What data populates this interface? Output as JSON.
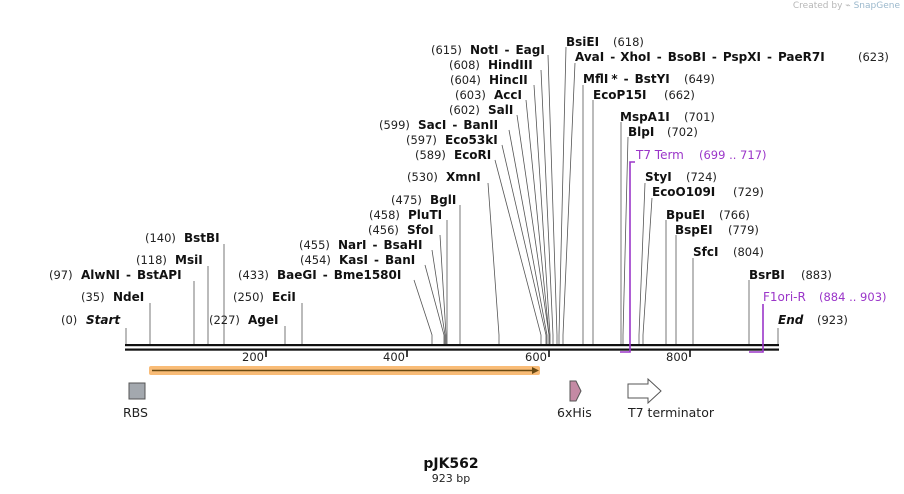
{
  "watermark": {
    "prefix": "Created by",
    "brand": "SnapGene"
  },
  "plasmid": {
    "name": "pJK562",
    "length_label": "923 bp",
    "length": 923
  },
  "axis_ticks": [
    "200",
    "400",
    "600",
    "800"
  ],
  "start_label": {
    "pos": "(0)",
    "name": "Start"
  },
  "end_label": {
    "name": "End",
    "pos": "(923)"
  },
  "sites_left": [
    {
      "pos": "(35)",
      "names": [
        "NdeI"
      ],
      "bp": 35
    },
    {
      "pos": "(97)",
      "names": [
        "AlwNI",
        "BstAPI"
      ],
      "bp": 97
    },
    {
      "pos": "(118)",
      "names": [
        "MsiI"
      ],
      "bp": 118
    },
    {
      "pos": "(140)",
      "names": [
        "BstBI"
      ],
      "bp": 140
    },
    {
      "pos": "(227)",
      "names": [
        "AgeI"
      ],
      "bp": 227
    },
    {
      "pos": "(250)",
      "names": [
        "EciI"
      ],
      "bp": 250
    },
    {
      "pos": "(433)",
      "names": [
        "BaeGI",
        "Bme1580I"
      ],
      "bp": 433
    },
    {
      "pos": "(454)",
      "names": [
        "KasI",
        "BanI"
      ],
      "bp": 454
    },
    {
      "pos": "(455)",
      "names": [
        "NarI",
        "BsaHI"
      ],
      "bp": 455
    },
    {
      "pos": "(456)",
      "names": [
        "SfoI"
      ],
      "bp": 456
    },
    {
      "pos": "(458)",
      "names": [
        "PluTI"
      ],
      "bp": 458
    },
    {
      "pos": "(475)",
      "names": [
        "BglI"
      ],
      "bp": 475
    },
    {
      "pos": "(530)",
      "names": [
        "XmnI"
      ],
      "bp": 530
    },
    {
      "pos": "(589)",
      "names": [
        "EcoRI"
      ],
      "bp": 589
    },
    {
      "pos": "(597)",
      "names": [
        "Eco53kI"
      ],
      "bp": 597
    },
    {
      "pos": "(599)",
      "names": [
        "SacI",
        "BanII"
      ],
      "bp": 599
    },
    {
      "pos": "(602)",
      "names": [
        "SalI"
      ],
      "bp": 602
    },
    {
      "pos": "(603)",
      "names": [
        "AccI"
      ],
      "bp": 603
    },
    {
      "pos": "(604)",
      "names": [
        "HincII"
      ],
      "bp": 604
    },
    {
      "pos": "(608)",
      "names": [
        "HindIII"
      ],
      "bp": 608
    },
    {
      "pos": "(615)",
      "names": [
        "NotI",
        "EagI"
      ],
      "bp": 615
    }
  ],
  "sites_right": [
    {
      "names": [
        "BsiEI"
      ],
      "pos": "(618)",
      "bp": 618
    },
    {
      "names": [
        "AvaI",
        "XhoI",
        "BsoBI",
        "PspXI",
        "PaeR7I"
      ],
      "pos": "(623)",
      "bp": 623
    },
    {
      "names": [
        "MflI",
        "BstYI"
      ],
      "star": "*",
      "pos": "(649)",
      "bp": 649
    },
    {
      "names": [
        "EcoP15I"
      ],
      "pos": "(662)",
      "bp": 662
    },
    {
      "names": [
        "MspA1I"
      ],
      "pos": "(701)",
      "bp": 701
    },
    {
      "names": [
        "BlpI"
      ],
      "pos": "(702)",
      "bp": 702
    },
    {
      "names": [
        "StyI"
      ],
      "pos": "(724)",
      "bp": 724
    },
    {
      "names": [
        "EcoO109I"
      ],
      "pos": "(729)",
      "bp": 729
    },
    {
      "names": [
        "BpuEI"
      ],
      "pos": "(766)",
      "bp": 766
    },
    {
      "names": [
        "BspEI"
      ],
      "pos": "(779)",
      "bp": 779
    },
    {
      "names": [
        "SfcI"
      ],
      "pos": "(804)",
      "bp": 804
    },
    {
      "names": [
        "BsrBI"
      ],
      "pos": "(883)",
      "bp": 883
    }
  ],
  "primers": [
    {
      "name": "T7 Term",
      "range": "(699 .. 717)",
      "start": 699,
      "end": 717
    },
    {
      "name": "F1ori-R",
      "range": "(884 .. 903)",
      "start": 884,
      "end": 903
    }
  ],
  "features": [
    {
      "name": "RBS",
      "type": "rbs",
      "color": "#a3a8ae"
    },
    {
      "name": "6xHis",
      "type": "tag",
      "color": "#c48aa4"
    },
    {
      "name": "T7 terminator",
      "type": "terminator",
      "color": "#ffffff"
    }
  ],
  "orf": {
    "color": "#f7a64a",
    "start": 18,
    "end": 580
  }
}
